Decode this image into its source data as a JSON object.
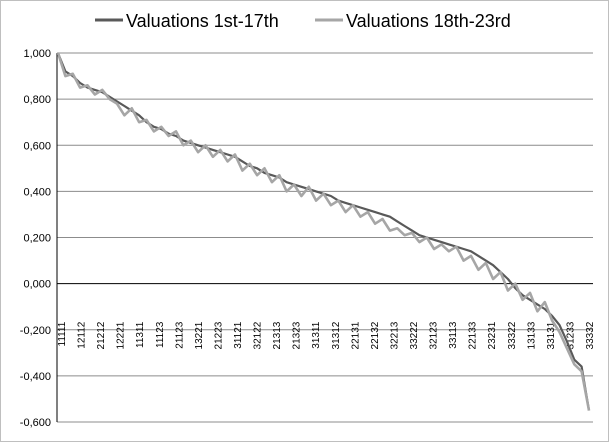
{
  "chart_data": {
    "type": "line",
    "title": "",
    "xlabel": "",
    "ylabel": "",
    "ylim": [
      -0.6,
      1.0
    ],
    "y_ticks": [
      "1,000",
      "0,800",
      "0,600",
      "0,400",
      "0,200",
      "0,000",
      "-0,200",
      "-0,400",
      "-0,600"
    ],
    "y_tick_values": [
      1.0,
      0.8,
      0.6,
      0.4,
      0.2,
      0.0,
      -0.2,
      -0.4,
      -0.6
    ],
    "grid": "horizontal",
    "legend_position": "top",
    "x_tick_labels": [
      "11111",
      "12112",
      "21212",
      "12221",
      "11311",
      "11123",
      "21123",
      "13221",
      "21223",
      "31121",
      "32122",
      "21313",
      "21323",
      "31311",
      "31312",
      "22131",
      "22132",
      "32213",
      "33222",
      "32123",
      "33113",
      "22133",
      "23231",
      "33322",
      "13133",
      "33131",
      "31233",
      "33332"
    ],
    "series": [
      {
        "name": "Valuations 1st-17th",
        "color": "#595959",
        "values": [
          1.0,
          0.92,
          0.9,
          0.87,
          0.85,
          0.84,
          0.83,
          0.81,
          0.79,
          0.77,
          0.75,
          0.73,
          0.7,
          0.68,
          0.67,
          0.65,
          0.64,
          0.62,
          0.61,
          0.6,
          0.59,
          0.58,
          0.57,
          0.56,
          0.55,
          0.53,
          0.51,
          0.5,
          0.48,
          0.47,
          0.46,
          0.44,
          0.43,
          0.42,
          0.41,
          0.4,
          0.39,
          0.38,
          0.36,
          0.35,
          0.34,
          0.33,
          0.32,
          0.31,
          0.3,
          0.29,
          0.27,
          0.25,
          0.23,
          0.21,
          0.2,
          0.19,
          0.18,
          0.17,
          0.16,
          0.15,
          0.14,
          0.12,
          0.1,
          0.08,
          0.05,
          0.02,
          -0.02,
          -0.05,
          -0.07,
          -0.09,
          -0.11,
          -0.14,
          -0.18,
          -0.25,
          -0.33,
          -0.36,
          -0.55
        ]
      },
      {
        "name": "Valuations 18th-23rd",
        "color": "#a6a6a6",
        "values": [
          1.0,
          0.9,
          0.91,
          0.85,
          0.86,
          0.82,
          0.84,
          0.8,
          0.78,
          0.73,
          0.76,
          0.7,
          0.71,
          0.66,
          0.68,
          0.64,
          0.66,
          0.6,
          0.62,
          0.57,
          0.6,
          0.55,
          0.58,
          0.53,
          0.56,
          0.49,
          0.52,
          0.47,
          0.5,
          0.44,
          0.47,
          0.4,
          0.43,
          0.38,
          0.42,
          0.36,
          0.39,
          0.34,
          0.36,
          0.31,
          0.34,
          0.29,
          0.31,
          0.26,
          0.28,
          0.23,
          0.24,
          0.21,
          0.22,
          0.18,
          0.2,
          0.15,
          0.17,
          0.14,
          0.16,
          0.1,
          0.12,
          0.06,
          0.09,
          0.02,
          0.05,
          -0.03,
          0.0,
          -0.07,
          -0.04,
          -0.12,
          -0.08,
          -0.16,
          -0.21,
          -0.28,
          -0.35,
          -0.38,
          -0.55
        ]
      }
    ]
  }
}
